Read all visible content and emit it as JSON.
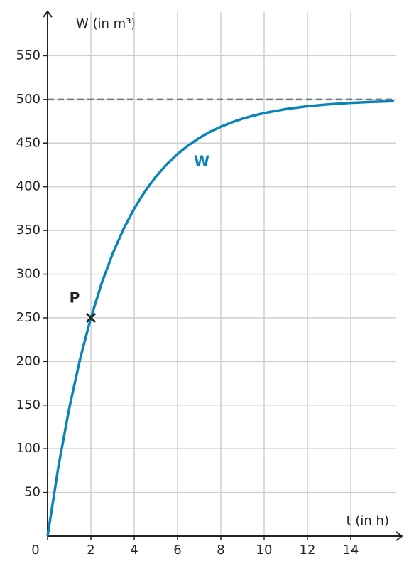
{
  "chart_data": {
    "type": "line",
    "x_label": "t (in h)",
    "y_label": "W (in m³)",
    "x": [
      0,
      0.5,
      1,
      1.5,
      2,
      2.5,
      3,
      3.5,
      4,
      4.5,
      5,
      5.5,
      6,
      6.5,
      7,
      7.5,
      8,
      8.5,
      9,
      9.5,
      10,
      11,
      12,
      13,
      14,
      15,
      16
    ],
    "series": [
      {
        "name": "W",
        "color": "#0a84b8",
        "values": [
          0,
          79.55,
          146.45,
          202.68,
          250,
          289.78,
          323.22,
          351.34,
          375,
          394.89,
          411.61,
          425.67,
          437.5,
          447.44,
          455.81,
          462.84,
          468.75,
          473.72,
          477.9,
          481.42,
          484.38,
          488.95,
          492.19,
          494.48,
          496.09,
          497.24,
          498.05
        ]
      }
    ],
    "xlim": [
      0,
      16
    ],
    "ylim": [
      0,
      600
    ],
    "xticks": [
      0,
      2,
      4,
      6,
      8,
      10,
      12,
      14
    ],
    "yticks": [
      50,
      100,
      150,
      200,
      250,
      300,
      350,
      400,
      450,
      500,
      550
    ],
    "grid": true,
    "asymptote": 500,
    "point": {
      "label": "P",
      "x": 2,
      "y": 250
    }
  }
}
